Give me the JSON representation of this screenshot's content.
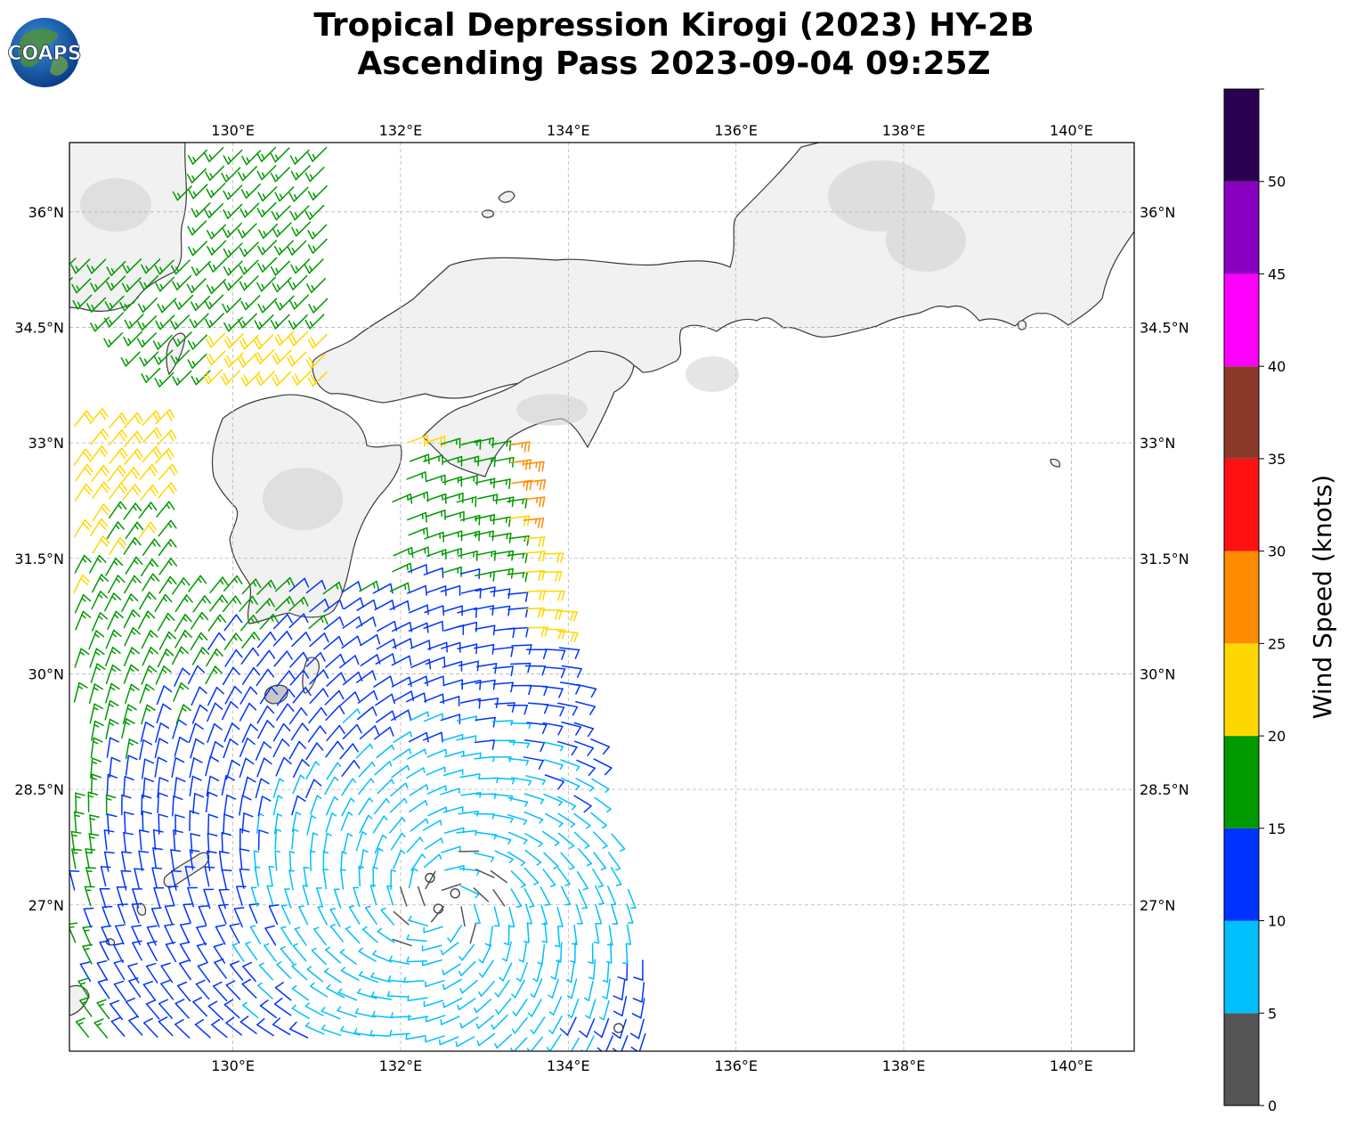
{
  "title_line1": "Tropical Depression Kirogi (2023) HY-2B",
  "title_line2": "Ascending Pass 2023-09-04 09:25Z",
  "logo_text": "COAPS",
  "map": {
    "lon_range": [
      128.05,
      140.75
    ],
    "lat_range": [
      25.1,
      36.9
    ],
    "lon_ticks": [
      {
        "lon": 130,
        "label": "130°E"
      },
      {
        "lon": 132,
        "label": "132°E"
      },
      {
        "lon": 134,
        "label": "134°E"
      },
      {
        "lon": 136,
        "label": "136°E"
      },
      {
        "lon": 138,
        "label": "138°E"
      },
      {
        "lon": 140,
        "label": "140°E"
      }
    ],
    "lat_ticks": [
      {
        "lat": 27,
        "label": "27°N"
      },
      {
        "lat": 28.5,
        "label": "28.5°N"
      },
      {
        "lat": 30,
        "label": "30°N"
      },
      {
        "lat": 31.5,
        "label": "31.5°N"
      },
      {
        "lat": 33,
        "label": "33°N"
      },
      {
        "lat": 34.5,
        "label": "34.5°N"
      },
      {
        "lat": 36,
        "label": "36°N"
      }
    ],
    "gridlines": "dashed",
    "land_color": "#f2f2f2",
    "coast_color": "#333333",
    "center_of_circulation": {
      "lon": 132.5,
      "lat": 27.0
    }
  },
  "colorbar": {
    "label": "Wind Speed (knots)",
    "bounds": [
      0,
      5,
      10,
      15,
      20,
      25,
      30,
      35,
      40,
      45,
      50,
      55
    ],
    "tick_labels": [
      "0",
      "5",
      "10",
      "15",
      "20",
      "25",
      "30",
      "35",
      "40",
      "45",
      "50"
    ],
    "colors": [
      "#555555",
      "#00bfff",
      "#0033ff",
      "#009900",
      "#ffd700",
      "#ff8c00",
      "#ff1111",
      "#8b3a2a",
      "#ff00ff",
      "#8a00c0",
      "#2a0050"
    ]
  }
}
